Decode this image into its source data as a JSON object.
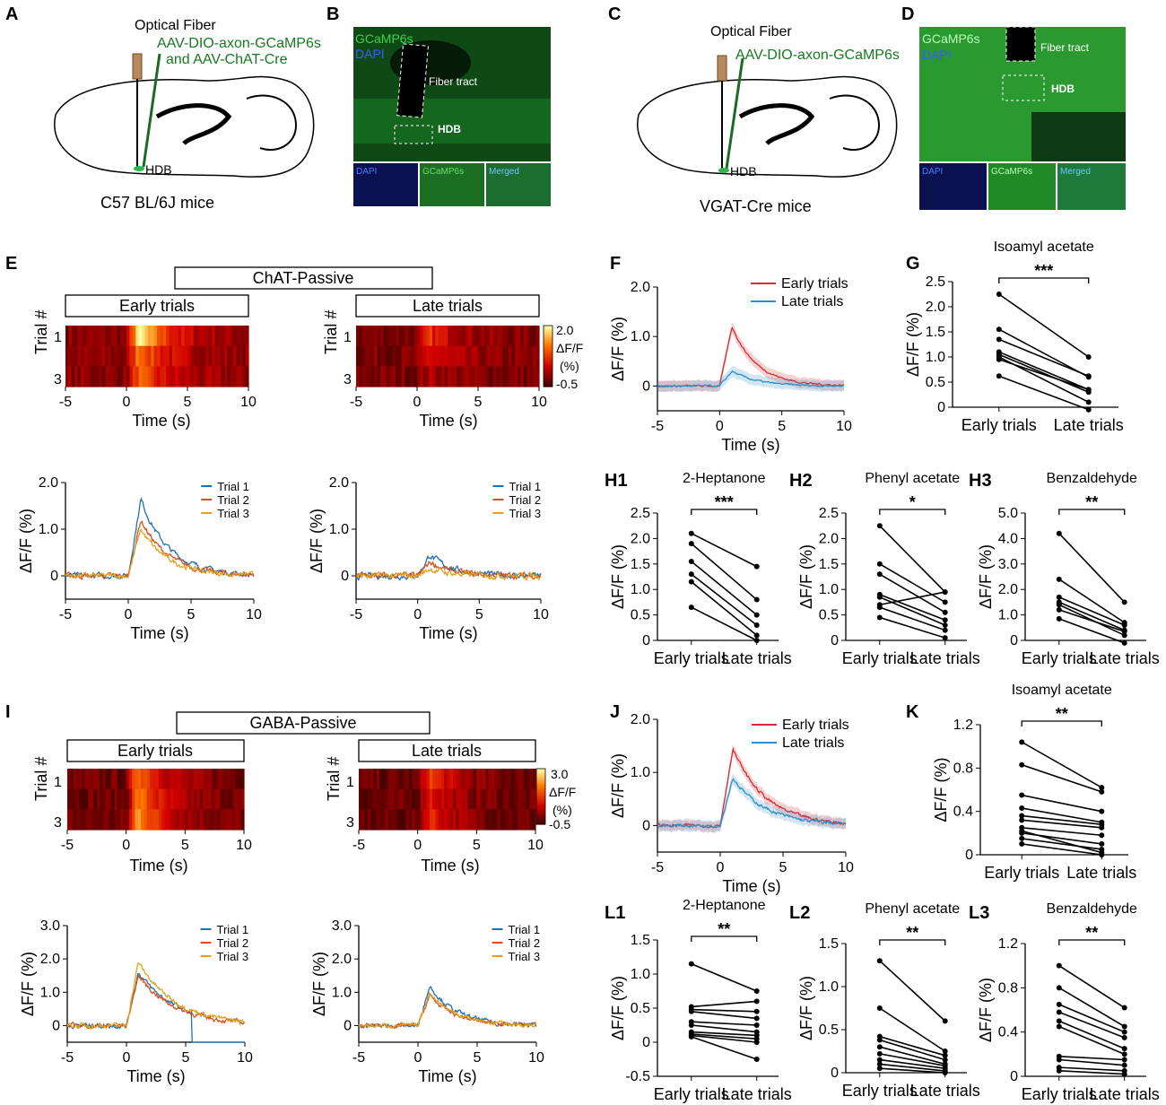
{
  "colors": {
    "early": "#d62c34",
    "late": "#2f8fc9",
    "trial1": "#1f6fb5",
    "trial2": "#d9501e",
    "trial3": "#e0a21a",
    "green": "#157a20",
    "dot": "#000000"
  },
  "panels": {
    "A": {
      "label": "A",
      "fiber": "Optical Fiber",
      "virus_line1": "AAV-DIO-axon-GCaMP6s",
      "virus_line2": "and AAV-ChAT-Cre",
      "region": "HDB",
      "mice": "C57 BL/6J mice"
    },
    "B": {
      "label": "B",
      "ch1": "GCaMP6s",
      "ch2": "DAPI",
      "tract": "Fiber tract",
      "region": "HDB",
      "insets": [
        "DAPI",
        "GCaMP6s",
        "Merged"
      ]
    },
    "C": {
      "label": "C",
      "fiber": "Optical Fiber",
      "virus_line1": "AAV-DIO-axon-GCaMP6s",
      "region": "HDB",
      "mice": "VGAT-Cre mice"
    },
    "D": {
      "label": "D",
      "ch1": "GCaMP6s",
      "ch2": "DAPI",
      "tract": "Fiber tract",
      "region": "HDB",
      "insets": [
        "DAPI",
        "GCaMP6s",
        "Merged"
      ]
    },
    "E": {
      "label": "E",
      "group": "ChAT-Passive",
      "early": "Early trials",
      "late": "Late trials",
      "trial_axis": "Trial #",
      "trial_ticks": [
        "1",
        "3"
      ],
      "cbar_max": "2.0",
      "cbar_label": "ΔF/F",
      "cbar_unit": "(%)",
      "cbar_min": "-0.5",
      "time_label": "Time (s)",
      "ylabel": "ΔF/F (%)"
    },
    "F": {
      "label": "F"
    },
    "G": {
      "label": "G"
    },
    "H1": {
      "label": "H1"
    },
    "H2": {
      "label": "H2"
    },
    "H3": {
      "label": "H3"
    },
    "I": {
      "label": "I",
      "group": "GABA-Passive",
      "early": "Early trials",
      "late": "Late trials",
      "trial_axis": "Trial #",
      "trial_ticks": [
        "1",
        "3"
      ],
      "cbar_max": "3.0",
      "cbar_label": "ΔF/F",
      "cbar_unit": "(%)",
      "cbar_min": "-0.5",
      "time_label": "Time (s)",
      "ylabel": "ΔF/F (%)"
    },
    "J": {
      "label": "J"
    },
    "K": {
      "label": "K"
    },
    "L1": {
      "label": "L1"
    },
    "L2": {
      "label": "L2"
    },
    "L3": {
      "label": "L3"
    }
  },
  "chart_data": [
    {
      "id": "E-early-traces",
      "type": "line",
      "x": [
        -5,
        10
      ],
      "xticks": [
        "-5",
        "0",
        "5",
        "10"
      ],
      "yticks": [
        "0",
        "1.0",
        "2.0"
      ],
      "ylim": [
        -0.5,
        2.0
      ],
      "xlabel": "Time (s)",
      "ylabel": "ΔF/F (%)",
      "series": [
        {
          "name": "Trial 1",
          "peak": 1.65,
          "color": "trial1"
        },
        {
          "name": "Trial 2",
          "peak": 1.2,
          "color": "trial2"
        },
        {
          "name": "Trial 3",
          "peak": 1.0,
          "color": "trial3"
        }
      ]
    },
    {
      "id": "E-late-traces",
      "type": "line",
      "x": [
        -5,
        10
      ],
      "xticks": [
        "-5",
        "0",
        "5",
        "10"
      ],
      "yticks": [
        "0",
        "1.0",
        "2.0"
      ],
      "ylim": [
        -0.5,
        2.0
      ],
      "xlabel": "Time (s)",
      "ylabel": "ΔF/F (%)",
      "series": [
        {
          "name": "Trial 1",
          "peak": 0.45,
          "color": "trial1"
        },
        {
          "name": "Trial 2",
          "peak": 0.3,
          "color": "trial2"
        },
        {
          "name": "Trial 3",
          "peak": 0.15,
          "color": "trial3"
        }
      ]
    },
    {
      "id": "F",
      "type": "line",
      "xticks": [
        "-5",
        "0",
        "5",
        "10"
      ],
      "yticks": [
        "0",
        "1.0",
        "2.0"
      ],
      "ylim": [
        -0.5,
        2.0
      ],
      "xlabel": "Time (s)",
      "ylabel": "ΔF/F (%)",
      "series": [
        {
          "name": "Early trials",
          "peak": 1.2,
          "color": "early"
        },
        {
          "name": "Late trials",
          "peak": 0.3,
          "color": "late"
        }
      ]
    },
    {
      "id": "G",
      "type": "scatter",
      "title": "Isoamyl acetate",
      "sig": "***",
      "categories": [
        "Early trials",
        "Late trials"
      ],
      "yticks": [
        "0",
        "0.5",
        "1.0",
        "1.5",
        "2.0",
        "2.5"
      ],
      "ylim": [
        0,
        2.5
      ],
      "ylabel": "ΔF/F (%)",
      "pairs": [
        [
          2.25,
          1.0
        ],
        [
          1.55,
          0.6
        ],
        [
          1.35,
          0.62
        ],
        [
          1.1,
          0.35
        ],
        [
          1.05,
          0.3
        ],
        [
          1.0,
          0.1
        ],
        [
          0.95,
          0.35
        ],
        [
          0.62,
          -0.05
        ]
      ]
    },
    {
      "id": "H1",
      "type": "scatter",
      "title": "2-Heptanone",
      "sig": "***",
      "categories": [
        "Early trials",
        "Late trials"
      ],
      "yticks": [
        "0",
        "0.5",
        "1.0",
        "1.5",
        "2.0",
        "2.5"
      ],
      "ylim": [
        0,
        2.5
      ],
      "ylabel": "ΔF/F (%)",
      "pairs": [
        [
          2.1,
          1.45
        ],
        [
          1.9,
          0.8
        ],
        [
          1.55,
          0.5
        ],
        [
          1.3,
          0.3
        ],
        [
          1.15,
          0.1
        ],
        [
          0.65,
          0.0
        ]
      ]
    },
    {
      "id": "H2",
      "type": "scatter",
      "title": "Phenyl acetate",
      "sig": "*",
      "categories": [
        "Early trials",
        "Late trials"
      ],
      "yticks": [
        "0",
        "0.5",
        "1.0",
        "1.5",
        "2.0",
        "2.5"
      ],
      "ylim": [
        0,
        2.5
      ],
      "ylabel": "ΔF/F (%)",
      "pairs": [
        [
          2.25,
          0.95
        ],
        [
          1.5,
          0.75
        ],
        [
          1.3,
          0.55
        ],
        [
          0.9,
          0.4
        ],
        [
          0.85,
          0.3
        ],
        [
          0.7,
          0.95
        ],
        [
          0.65,
          0.2
        ],
        [
          0.45,
          0.05
        ]
      ]
    },
    {
      "id": "H3",
      "type": "scatter",
      "title": "Benzaldehyde",
      "sig": "**",
      "categories": [
        "Early trials",
        "Late trials"
      ],
      "yticks": [
        "0",
        "1.0",
        "2.0",
        "3.0",
        "4.0",
        "5.0"
      ],
      "ylim": [
        0,
        5.0
      ],
      "ylabel": "ΔF/F (%)",
      "pairs": [
        [
          4.2,
          1.5
        ],
        [
          2.4,
          0.7
        ],
        [
          1.7,
          0.6
        ],
        [
          1.5,
          0.4
        ],
        [
          1.4,
          0.2
        ],
        [
          1.2,
          0.35
        ],
        [
          0.85,
          -0.1
        ]
      ]
    },
    {
      "id": "I-early-traces",
      "type": "line",
      "xticks": [
        "-5",
        "0",
        "5",
        "10"
      ],
      "yticks": [
        "0",
        "1.0",
        "2.0",
        "3.0"
      ],
      "ylim": [
        -0.5,
        3.0
      ],
      "xlabel": "Time (s)",
      "ylabel": "ΔF/F (%)",
      "series": [
        {
          "name": "Trial 1",
          "peak": 1.6,
          "color": "trial1"
        },
        {
          "name": "Trial 2",
          "peak": 1.5,
          "color": "trial2"
        },
        {
          "name": "Trial 3",
          "peak": 1.9,
          "color": "trial3"
        }
      ]
    },
    {
      "id": "I-late-traces",
      "type": "line",
      "xticks": [
        "-5",
        "0",
        "5",
        "10"
      ],
      "yticks": [
        "0",
        "1.0",
        "2.0",
        "3.0"
      ],
      "ylim": [
        -0.5,
        3.0
      ],
      "xlabel": "Time (s)",
      "ylabel": "ΔF/F (%)",
      "series": [
        {
          "name": "Trial 1",
          "peak": 1.2,
          "color": "trial1"
        },
        {
          "name": "Trial 2",
          "peak": 0.9,
          "color": "trial2"
        },
        {
          "name": "Trial 3",
          "peak": 1.0,
          "color": "trial3"
        }
      ]
    },
    {
      "id": "J",
      "type": "line",
      "xticks": [
        "-5",
        "0",
        "5",
        "10"
      ],
      "yticks": [
        "0",
        "1.0",
        "2.0"
      ],
      "ylim": [
        -0.5,
        2.0
      ],
      "xlabel": "Time (s)",
      "ylabel": "ΔF/F (%)",
      "series": [
        {
          "name": "Early trials",
          "peak": 1.45,
          "color": "early"
        },
        {
          "name": "Late trials",
          "peak": 0.9,
          "color": "late"
        }
      ]
    },
    {
      "id": "K",
      "type": "scatter",
      "title": "Isoamyl acetate",
      "sig": "**",
      "categories": [
        "Early trials",
        "Late trials"
      ],
      "yticks": [
        "0",
        "0.4",
        "0.8",
        "1.2"
      ],
      "ylim": [
        0,
        1.2
      ],
      "ylabel": "ΔF/F (%)",
      "pairs": [
        [
          1.04,
          0.62
        ],
        [
          0.83,
          0.58
        ],
        [
          0.55,
          0.4
        ],
        [
          0.43,
          0.3
        ],
        [
          0.36,
          0.28
        ],
        [
          0.32,
          0.25
        ],
        [
          0.25,
          0.18
        ],
        [
          0.2,
          0.1
        ],
        [
          0.15,
          0.05
        ],
        [
          0.1,
          0.0
        ],
        [
          0.22,
          0.02
        ]
      ]
    },
    {
      "id": "L1",
      "type": "scatter",
      "title": "2-Heptanone",
      "sig": "**",
      "categories": [
        "Early trials",
        "Late trials"
      ],
      "yticks": [
        "-0.5",
        "0",
        "0.5",
        "1.0",
        "1.5"
      ],
      "ylim": [
        -0.5,
        1.5
      ],
      "ylabel": "ΔF/F (%)",
      "pairs": [
        [
          1.15,
          0.75
        ],
        [
          0.52,
          0.6
        ],
        [
          0.48,
          0.45
        ],
        [
          0.45,
          0.35
        ],
        [
          0.3,
          0.25
        ],
        [
          0.25,
          0.15
        ],
        [
          0.15,
          0.1
        ],
        [
          0.12,
          0.05
        ],
        [
          0.1,
          0.0
        ],
        [
          0.08,
          -0.25
        ]
      ]
    },
    {
      "id": "L2",
      "type": "scatter",
      "title": "Phenyl acetate",
      "sig": "**",
      "categories": [
        "Early trials",
        "Late trials"
      ],
      "yticks": [
        "0",
        "0.5",
        "1.0",
        "1.5"
      ],
      "ylim": [
        0,
        1.5
      ],
      "ylabel": "ΔF/F (%)",
      "pairs": [
        [
          1.3,
          0.6
        ],
        [
          0.75,
          0.25
        ],
        [
          0.42,
          0.2
        ],
        [
          0.38,
          0.15
        ],
        [
          0.3,
          0.1
        ],
        [
          0.22,
          0.08
        ],
        [
          0.15,
          0.05
        ],
        [
          0.1,
          0.02
        ],
        [
          0.05,
          0.0
        ]
      ]
    },
    {
      "id": "L3",
      "type": "scatter",
      "title": "Benzaldehyde",
      "sig": "**",
      "categories": [
        "Early trials",
        "Late trials"
      ],
      "yticks": [
        "0",
        "0.4",
        "0.8",
        "1.2"
      ],
      "ylim": [
        0,
        1.2
      ],
      "ylabel": "ΔF/F (%)",
      "pairs": [
        [
          1.0,
          0.62
        ],
        [
          0.8,
          0.45
        ],
        [
          0.65,
          0.4
        ],
        [
          0.58,
          0.35
        ],
        [
          0.5,
          0.25
        ],
        [
          0.45,
          0.2
        ],
        [
          0.18,
          0.15
        ],
        [
          0.15,
          0.1
        ],
        [
          0.08,
          0.05
        ],
        [
          0.05,
          0.02
        ]
      ]
    }
  ]
}
